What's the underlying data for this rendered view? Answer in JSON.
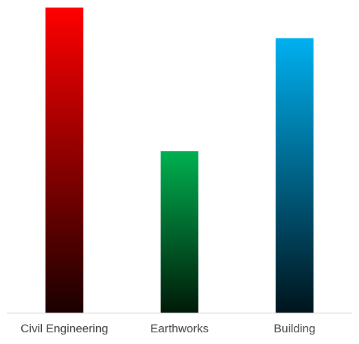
{
  "chart_data": {
    "type": "bar",
    "categories": [
      "Civil Engineering",
      "Earthworks",
      "Building"
    ],
    "values": [
      100,
      53,
      90
    ],
    "ylim": [
      0,
      100
    ],
    "grid": false,
    "legend": "none",
    "colors": [
      {
        "top": "#ff0000",
        "bottom": "#1a0000"
      },
      {
        "top": "#00b050",
        "bottom": "#001a08"
      },
      {
        "top": "#00b0f0",
        "bottom": "#00141c"
      }
    ],
    "axis_color": "#d9d9d9",
    "label_color": "#404040"
  }
}
